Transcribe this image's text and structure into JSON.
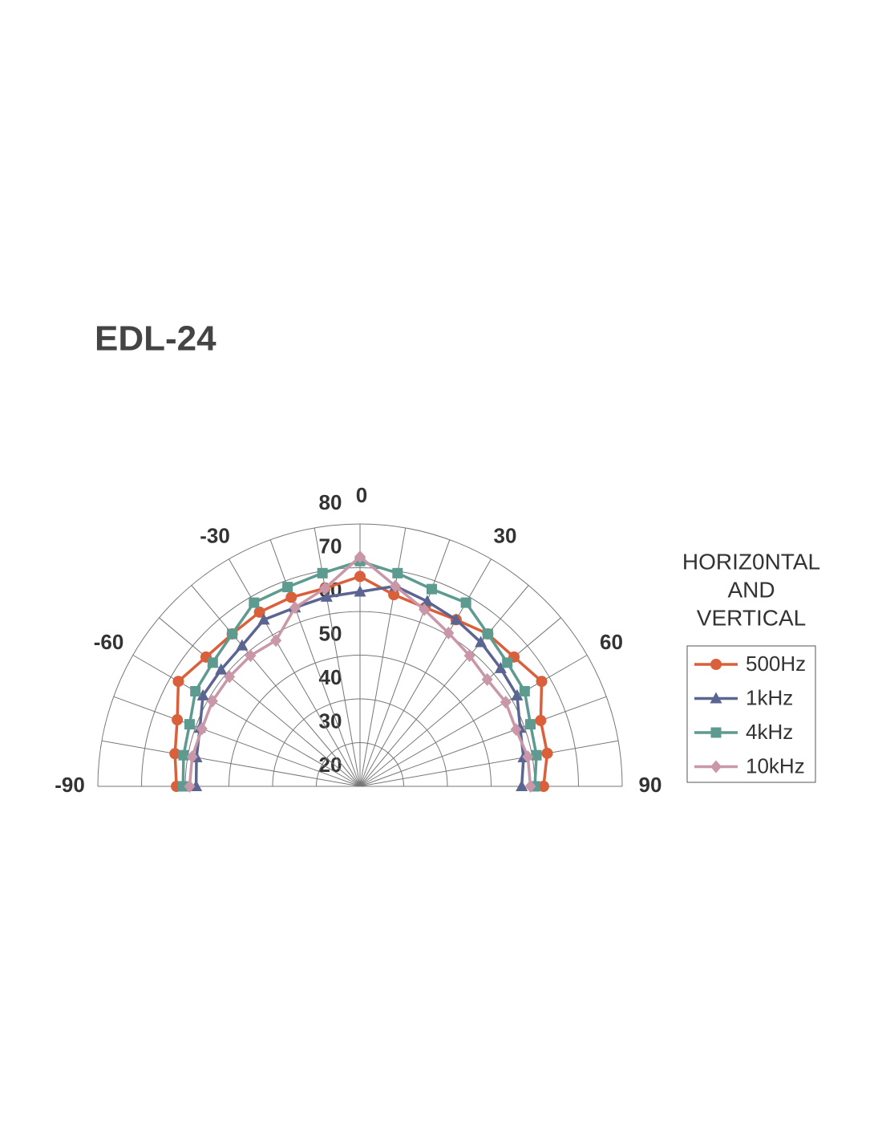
{
  "chart_data": {
    "type": "polar",
    "title": "EDL-24",
    "legend_title": [
      "HORIZ0NTAL",
      "AND",
      "VERTICAL"
    ],
    "theta": [
      -90,
      -80,
      -70,
      -60,
      -50,
      -40,
      -30,
      -20,
      -10,
      0,
      10,
      20,
      30,
      40,
      50,
      60,
      70,
      80,
      90
    ],
    "thetalim": [
      -90,
      90
    ],
    "thetaticks": [
      -90,
      -60,
      -30,
      0,
      30,
      60,
      90
    ],
    "rlim": [
      20,
      80
    ],
    "rticks": [
      20,
      30,
      40,
      50,
      60,
      70,
      80
    ],
    "grid": true,
    "legend": "right",
    "series": [
      {
        "name": "500Hz",
        "color": "#d9603b",
        "marker": "circle",
        "values": [
          62,
          63,
          64.5,
          68,
          66,
          65.5,
          66,
          66,
          66,
          68,
          64.5,
          63.5,
          64,
          65.5,
          66,
          68,
          64,
          63.5,
          62
        ]
      },
      {
        "name": "1kHz",
        "color": "#5b6591",
        "marker": "triangle",
        "values": [
          57.5,
          58,
          59,
          61.5,
          61.5,
          62,
          64,
          63.5,
          64,
          64.5,
          66.5,
          65,
          64,
          63,
          62,
          61.5,
          59,
          58,
          57
        ]
      },
      {
        "name": "4kHz",
        "color": "#5d9a8f",
        "marker": "square",
        "values": [
          60.5,
          61,
          61.5,
          63.5,
          64,
          65.5,
          68.5,
          68.5,
          69.5,
          71.5,
          69.5,
          68,
          68.5,
          65.5,
          64,
          63.5,
          61.5,
          61,
          60
        ]
      },
      {
        "name": "10kHz",
        "color": "#c997a8",
        "marker": "diamond",
        "values": [
          59,
          59,
          58.5,
          59,
          59,
          59,
          58.5,
          63.5,
          66,
          72.5,
          66.5,
          63,
          60.5,
          59,
          58,
          58.5,
          58,
          59,
          59
        ]
      }
    ]
  }
}
